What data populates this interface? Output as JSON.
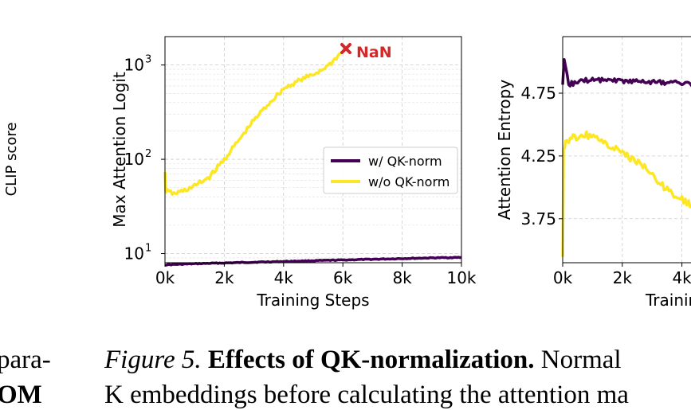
{
  "chart_data": [
    {
      "type": "line",
      "ylabel": "CLIP score",
      "partial": true
    },
    {
      "type": "line",
      "xlabel": "Training Steps",
      "ylabel": "Max Attention Logit",
      "yscale": "log",
      "ylim": [
        8,
        2000
      ],
      "xlim": [
        0,
        10000
      ],
      "grid": true,
      "legend": "center-right",
      "x_ticks": [
        "0k",
        "2k",
        "4k",
        "6k",
        "8k",
        "10k"
      ],
      "y_ticks": [
        {
          "base": "10",
          "exp": "1"
        },
        {
          "base": "10",
          "exp": "2"
        },
        {
          "base": "10",
          "exp": "3"
        }
      ],
      "annotation": {
        "text": "NaN",
        "marker": "x",
        "color": "#d62728",
        "x": 6100,
        "y": 1500
      },
      "series": [
        {
          "name": "w/ QK-norm",
          "color": "#440154",
          "x": [
            0,
            1000,
            2000,
            3000,
            4000,
            5000,
            6000,
            7000,
            8000,
            9000,
            10000
          ],
          "y": [
            7.6,
            7.8,
            7.95,
            8.1,
            8.25,
            8.4,
            8.55,
            8.7,
            8.85,
            9.0,
            9.1
          ]
        },
        {
          "name": "w/o QK-norm",
          "color": "#fde725",
          "x": [
            0,
            30,
            300,
            600,
            1000,
            1500,
            2000,
            2500,
            3000,
            3500,
            4000,
            4500,
            5000,
            5500,
            6000,
            6100
          ],
          "y": [
            70,
            46,
            43,
            46,
            52,
            65,
            100,
            160,
            260,
            390,
            560,
            680,
            790,
            980,
            1400,
            1500
          ]
        }
      ]
    },
    {
      "type": "line",
      "ylabel": "Attention Entropy",
      "partial": true,
      "ylim": [
        3.4,
        5.2
      ],
      "x_ticks": [
        "0k",
        "2k",
        "4k"
      ],
      "y_ticks": [
        "3.75",
        "4.25",
        "4.75"
      ],
      "grid": true,
      "series": [
        {
          "color": "#440154",
          "x": [
            0,
            50,
            200,
            500,
            1000,
            2000,
            3000,
            4000,
            4500
          ],
          "y": [
            4.8,
            5.0,
            4.82,
            4.84,
            4.86,
            4.85,
            4.84,
            4.83,
            4.82
          ]
        },
        {
          "color": "#fde725",
          "x": [
            0,
            30,
            100,
            400,
            800,
            1200,
            2000,
            2800,
            3400,
            4000,
            4500
          ],
          "y": [
            3.45,
            4.3,
            4.36,
            4.4,
            4.42,
            4.38,
            4.28,
            4.15,
            4.0,
            3.9,
            3.85
          ]
        }
      ]
    }
  ],
  "left_text": {
    "line1": "para-",
    "line2": "OM"
  },
  "caption": {
    "label": "Figure 5.",
    "title": "Effects of QK-normalization.",
    "text": "Normal",
    "line2": "K embeddings before calculating the attention ma"
  }
}
